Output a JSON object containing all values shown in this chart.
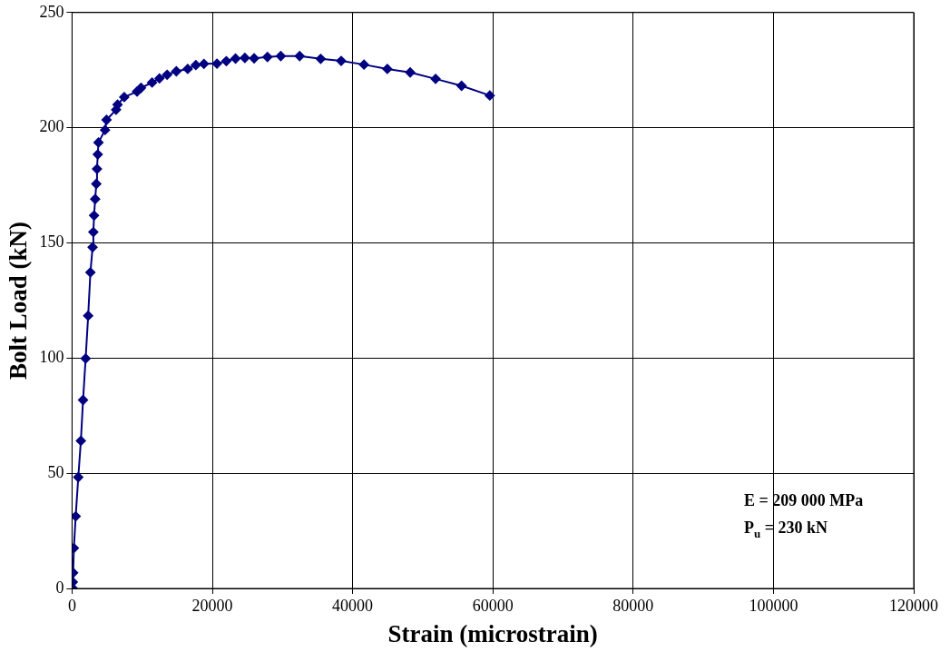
{
  "chart_data": {
    "type": "line",
    "xlabel": "Strain (microstrain)",
    "ylabel": "Bolt Load (kN)",
    "x": [
      60,
      110,
      160,
      260,
      520,
      890,
      1260,
      1570,
      1940,
      2300,
      2620,
      2930,
      3040,
      3140,
      3300,
      3460,
      3560,
      3670,
      3770,
      4710,
      4920,
      6280,
      6490,
      7440,
      9270,
      9840,
      11410,
      12460,
      13560,
      14870,
      16490,
      17650,
      18800,
      20660,
      22000,
      23310,
      24640,
      25960,
      27860,
      29760,
      32450,
      35450,
      38370,
      41630,
      44950,
      48210,
      51830,
      55540,
      59560
    ],
    "series": [
      {
        "color": "#000080",
        "values": [
          0.2,
          2.8,
          6.8,
          17.5,
          31.3,
          48.3,
          64.1,
          81.8,
          99.8,
          118.4,
          137.2,
          148.1,
          154.7,
          161.9,
          169,
          175.6,
          182.1,
          188.4,
          193.6,
          199,
          203.4,
          207.8,
          210,
          213.3,
          215.7,
          217.3,
          219.6,
          221.4,
          223,
          224.5,
          225.5,
          227.2,
          227.7,
          227.8,
          228.9,
          230,
          230.3,
          230.1,
          230.7,
          231.1,
          231.1,
          229.9,
          229,
          227.4,
          225.5,
          224,
          221.2,
          218.2,
          214
        ]
      }
    ],
    "xlim": [
      0,
      120000
    ],
    "xticks": [
      0,
      20000,
      40000,
      60000,
      80000,
      100000,
      120000
    ],
    "ylim": [
      0,
      250
    ],
    "yticks": [
      0,
      50,
      100,
      150,
      200,
      250
    ],
    "grid": true,
    "legend": false,
    "marker": "diamond",
    "line_style": "solid",
    "annotations": [
      "E = 209 000 MPa",
      "P$_{u}$ = 230 kN"
    ]
  }
}
